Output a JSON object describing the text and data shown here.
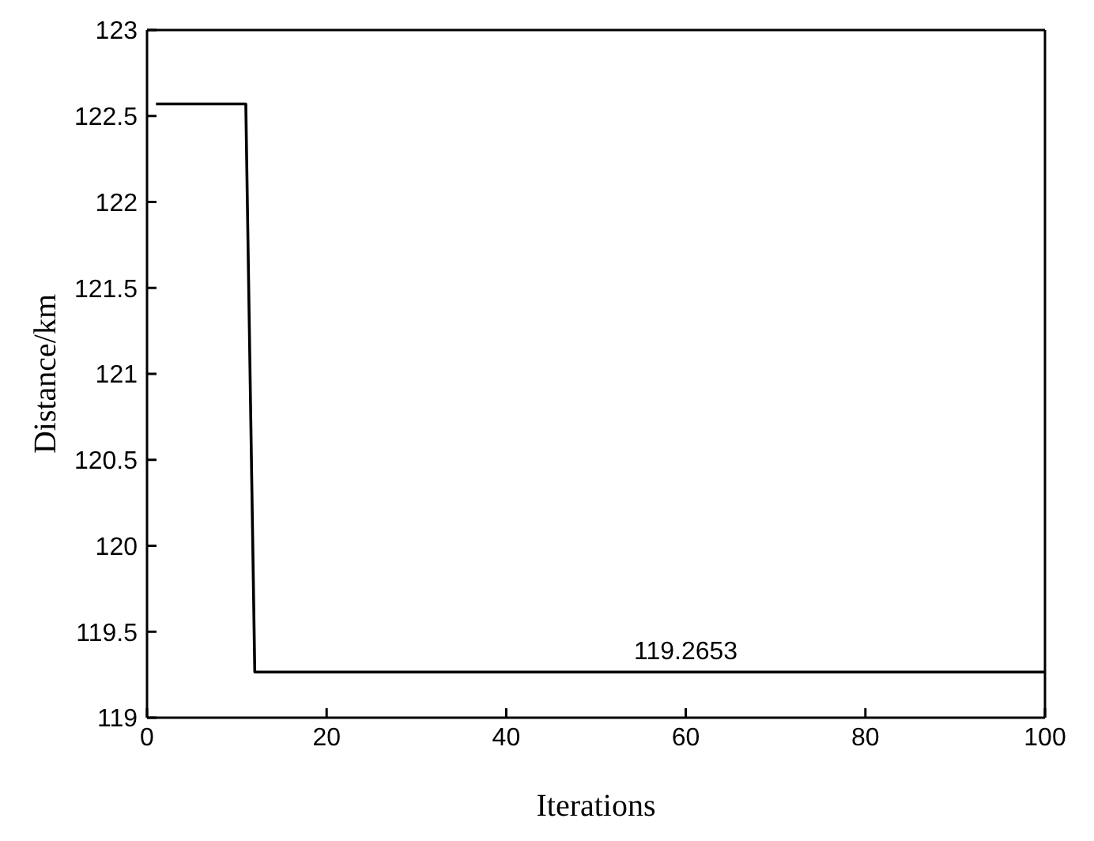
{
  "chart_data": {
    "type": "line",
    "xlabel": "Iterations",
    "ylabel": "Distance/km",
    "x": [
      1,
      11,
      12,
      100
    ],
    "series": [
      {
        "color": "#000000",
        "values": [
          122.57,
          122.57,
          119.2653,
          119.2653
        ]
      }
    ],
    "xlim": [
      0,
      100
    ],
    "xticks": [
      0,
      20,
      40,
      60,
      80,
      100
    ],
    "ylim": [
      119,
      123
    ],
    "yticks": [
      119,
      119.5,
      120,
      120.5,
      121,
      121.5,
      122,
      122.5,
      123
    ],
    "annotations": [
      {
        "text": "119.2653",
        "x": 60,
        "y": 119.2653
      }
    ],
    "grid": false,
    "legend": false,
    "marker": "none",
    "line_style": "solid"
  }
}
